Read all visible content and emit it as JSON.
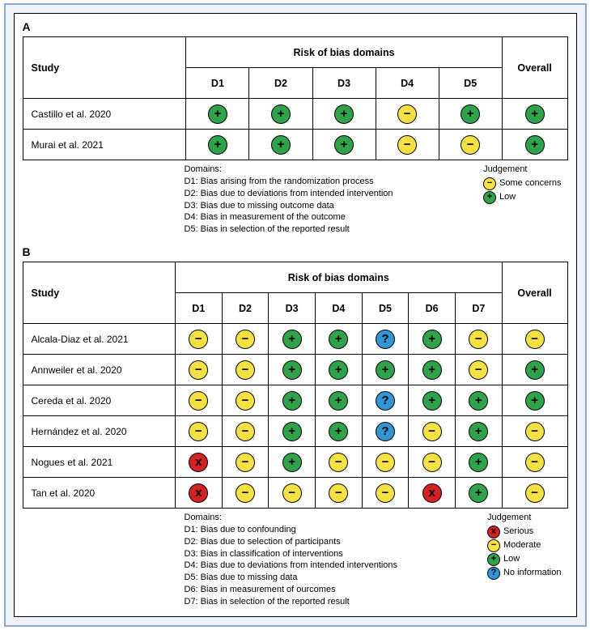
{
  "colors": {
    "low": {
      "bg": "#2fa34a",
      "fg": "#000000",
      "glyph": "+"
    },
    "some": {
      "bg": "#f5e142",
      "fg": "#000000",
      "glyph": "−"
    },
    "moderate": {
      "bg": "#f5e142",
      "fg": "#000000",
      "glyph": "−"
    },
    "serious": {
      "bg": "#d42121",
      "fg": "#000000",
      "glyph": "x"
    },
    "noinfo": {
      "bg": "#2e97d4",
      "fg": "#000000",
      "glyph": "?"
    }
  },
  "panelA": {
    "label": "A",
    "header": "Risk of bias domains",
    "studyCol": "Study",
    "domainCols": [
      "D1",
      "D2",
      "D3",
      "D4",
      "D5"
    ],
    "overallCol": "Overall",
    "rows": [
      {
        "study": "Castillo et al. 2020",
        "cells": [
          "low",
          "low",
          "low",
          "some",
          "low"
        ],
        "overall": "low"
      },
      {
        "study": "Murai et al. 2021",
        "cells": [
          "low",
          "low",
          "low",
          "some",
          "some"
        ],
        "overall": "low"
      }
    ],
    "domainsTitle": "Domains:",
    "domainDefs": [
      "D1: Bias arising from the randomization process",
      "D2: Bias due to deviations from intended intervention",
      "D3: Bias due to missing outcome data",
      "D4: Bias in measurement of the outcome",
      "D5: Bias in selection of the reported result"
    ],
    "judgeTitle": "Judgement",
    "judgeItems": [
      {
        "key": "some",
        "label": "Some concerns"
      },
      {
        "key": "low",
        "label": "Low"
      }
    ]
  },
  "panelB": {
    "label": "B",
    "header": "Risk of bias domains",
    "studyCol": "Study",
    "domainCols": [
      "D1",
      "D2",
      "D3",
      "D4",
      "D5",
      "D6",
      "D7"
    ],
    "overallCol": "Overall",
    "rows": [
      {
        "study": "Alcala-Diaz et al. 2021",
        "cells": [
          "moderate",
          "moderate",
          "low",
          "low",
          "noinfo",
          "low",
          "moderate"
        ],
        "overall": "moderate"
      },
      {
        "study": "Annweiler et al. 2020",
        "cells": [
          "moderate",
          "moderate",
          "low",
          "low",
          "low",
          "low",
          "moderate"
        ],
        "overall": "low"
      },
      {
        "study": "Cereda et al. 2020",
        "cells": [
          "moderate",
          "moderate",
          "low",
          "low",
          "noinfo",
          "low",
          "low"
        ],
        "overall": "low"
      },
      {
        "study": "Hernández et al. 2020",
        "cells": [
          "moderate",
          "moderate",
          "low",
          "low",
          "noinfo",
          "moderate",
          "low"
        ],
        "overall": "moderate"
      },
      {
        "study": "Nogues et al. 2021",
        "cells": [
          "serious",
          "moderate",
          "low",
          "moderate",
          "moderate",
          "moderate",
          "low"
        ],
        "overall": "moderate"
      },
      {
        "study": "Tan et al. 2020",
        "cells": [
          "serious",
          "moderate",
          "moderate",
          "moderate",
          "moderate",
          "serious",
          "low"
        ],
        "overall": "moderate"
      }
    ],
    "domainsTitle": "Domains:",
    "domainDefs": [
      "D1: Bias due to confounding",
      "D2: Bias due to selection of participants",
      "D3: Bias in classification of interventions",
      "D4: Bias due to deviations from intended interventions",
      "D5: Bias due to missing data",
      "D6: Bias in measurement of ourcomes",
      "D7: Bias in selection of the reported result"
    ],
    "judgeTitle": "Judgement",
    "judgeItems": [
      {
        "key": "serious",
        "label": "Serious"
      },
      {
        "key": "moderate",
        "label": "Moderate"
      },
      {
        "key": "low",
        "label": "Low"
      },
      {
        "key": "noinfo",
        "label": "No information"
      }
    ]
  }
}
